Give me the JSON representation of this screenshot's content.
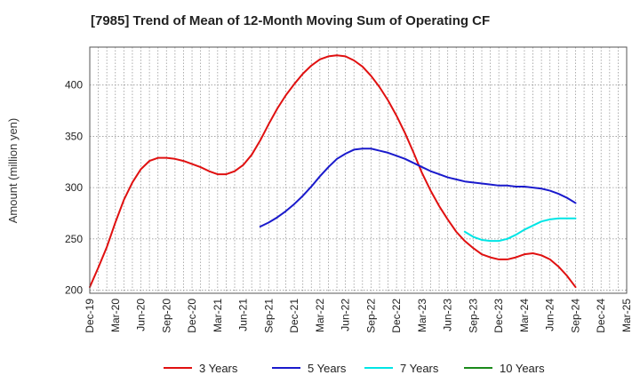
{
  "chart_data": {
    "type": "line",
    "title": "[7985]  Trend of Mean of 12-Month Moving Sum of Operating CF",
    "xlabel": "",
    "ylabel": "Amount (million yen)",
    "ylim": [
      197,
      437
    ],
    "yticks": [
      200,
      250,
      300,
      350,
      400
    ],
    "xlim": [
      0,
      63
    ],
    "xtick_labels": [
      "Dec-19",
      "Mar-20",
      "Jun-20",
      "Sep-20",
      "Dec-20",
      "Mar-21",
      "Jun-21",
      "Sep-21",
      "Dec-21",
      "Mar-22",
      "Jun-22",
      "Sep-22",
      "Dec-22",
      "Mar-23",
      "Jun-23",
      "Sep-23",
      "Dec-23",
      "Mar-24",
      "Jun-24",
      "Sep-24",
      "Dec-24",
      "Mar-25"
    ],
    "grid": true,
    "legend_position": "bottom",
    "series": [
      {
        "name": "3 Years",
        "color": "#e01010",
        "x": [
          0,
          1,
          2,
          3,
          4,
          5,
          6,
          7,
          8,
          9,
          10,
          11,
          12,
          13,
          14,
          15,
          16,
          17,
          18,
          19,
          20,
          21,
          22,
          23,
          24,
          25,
          26,
          27,
          28,
          29,
          30,
          31,
          32,
          33,
          34,
          35,
          36,
          37,
          38,
          39,
          40,
          41,
          42,
          43,
          44,
          45,
          46,
          47,
          48,
          49,
          50,
          51,
          52,
          53,
          54,
          55,
          56,
          57
        ],
        "values": [
          203,
          222,
          242,
          266,
          288,
          305,
          318,
          326,
          329,
          329,
          328,
          326,
          323,
          320,
          316,
          313,
          313,
          316,
          322,
          332,
          346,
          362,
          377,
          390,
          401,
          411,
          419,
          425,
          428,
          429,
          428,
          424,
          418,
          409,
          398,
          385,
          370,
          353,
          334,
          314,
          297,
          282,
          269,
          257,
          248,
          241,
          235,
          232,
          230,
          230,
          232,
          235,
          236,
          234,
          230,
          223,
          214,
          203
        ]
      },
      {
        "name": "5 Years",
        "color": "#1a1acc",
        "x": [
          20,
          21,
          22,
          23,
          24,
          25,
          26,
          27,
          28,
          29,
          30,
          31,
          32,
          33,
          34,
          35,
          36,
          37,
          38,
          39,
          40,
          41,
          42,
          43,
          44,
          45,
          46,
          47,
          48,
          49,
          50,
          51,
          52,
          53,
          54,
          55,
          56,
          57
        ],
        "values": [
          262,
          266,
          271,
          277,
          284,
          292,
          301,
          311,
          320,
          328,
          333,
          337,
          338,
          338,
          336,
          334,
          331,
          328,
          324,
          320,
          316,
          313,
          310,
          308,
          306,
          305,
          304,
          303,
          302,
          302,
          301,
          301,
          300,
          299,
          297,
          294,
          290,
          285
        ]
      },
      {
        "name": "7 Years",
        "color": "#00e5e5",
        "x": [
          44,
          45,
          46,
          47,
          48,
          49,
          50,
          51,
          52,
          53,
          54,
          55,
          56,
          57
        ],
        "values": [
          257,
          252,
          249,
          248,
          248,
          250,
          254,
          259,
          263,
          267,
          269,
          270,
          270,
          270
        ]
      },
      {
        "name": "10 Years",
        "color": "#1a8a1a",
        "x": [],
        "values": []
      }
    ]
  }
}
